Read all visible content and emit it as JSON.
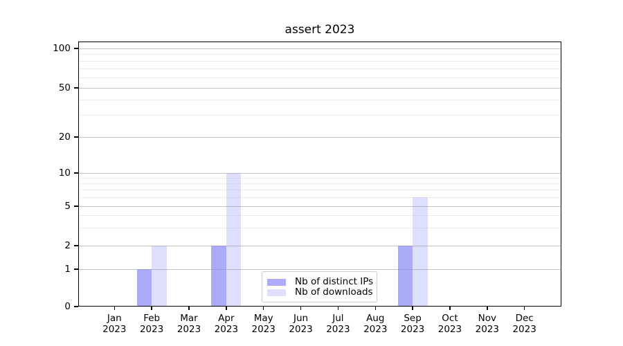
{
  "chart_data": {
    "type": "bar",
    "title": "assert 2023",
    "categories": [
      "Jan 2023",
      "Feb 2023",
      "Mar 2023",
      "Apr 2023",
      "May 2023",
      "Jun 2023",
      "Jul 2023",
      "Aug 2023",
      "Sep 2023",
      "Oct 2023",
      "Nov 2023",
      "Dec 2023"
    ],
    "series": [
      {
        "name": "Nb of distinct IPs",
        "color": "#8888f8",
        "alpha": 0.7,
        "values": [
          0,
          1,
          0,
          2,
          0,
          0,
          0,
          0,
          2,
          0,
          0,
          0
        ]
      },
      {
        "name": "Nb of downloads",
        "color": "#8888f8",
        "alpha": 0.28,
        "values": [
          0,
          2,
          0,
          10,
          0,
          0,
          0,
          0,
          6,
          0,
          0,
          0
        ]
      }
    ],
    "xlabel": "",
    "ylabel": "",
    "yaxis": {
      "scale": "symlog",
      "ticks": [
        0,
        1,
        2,
        5,
        10,
        20,
        50,
        100
      ],
      "ylim": [
        0,
        113
      ]
    },
    "legend": {
      "position": "lower center"
    },
    "grid": {
      "major": true,
      "minor": true
    }
  }
}
